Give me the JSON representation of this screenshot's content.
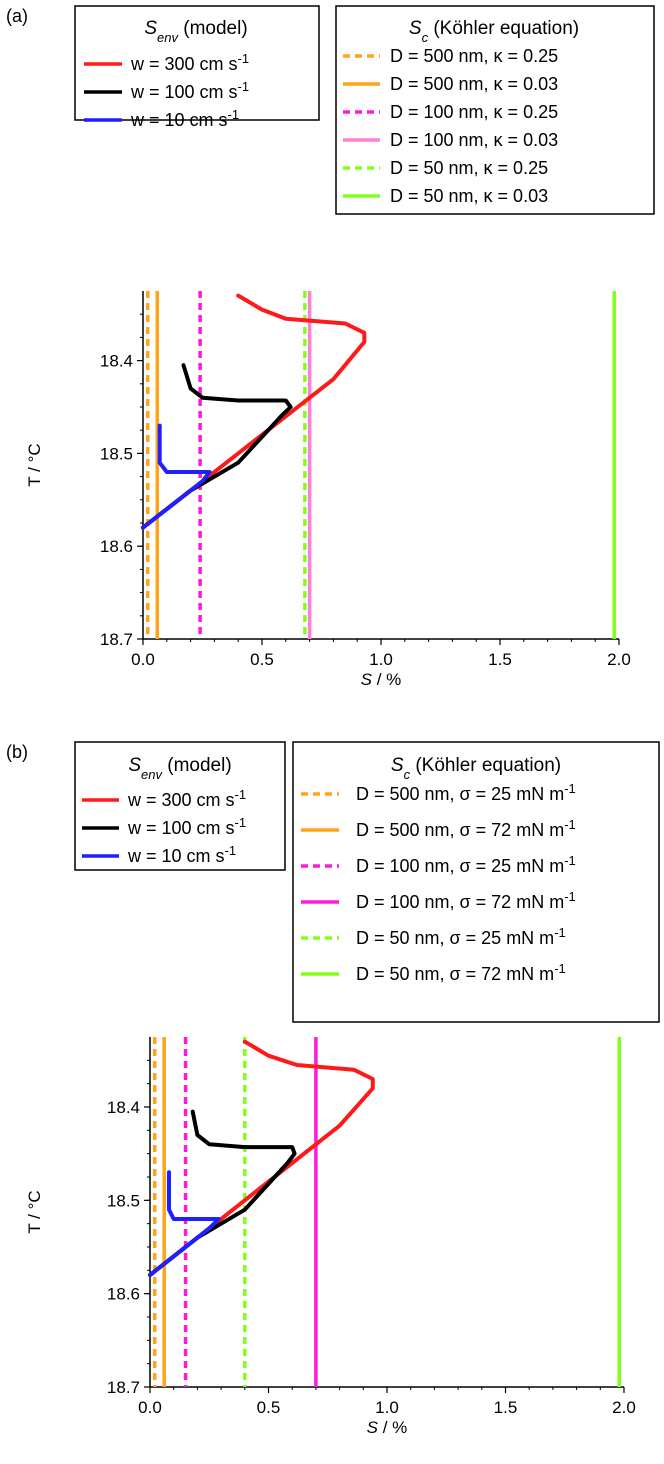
{
  "chart_data": [
    {
      "panel_label": "(a)",
      "type": "line",
      "xlabel": {
        "italic": "S",
        "text": " / %"
      },
      "ylabel": "T / °C",
      "xlim": [
        0.0,
        2.0
      ],
      "ylim": [
        18.7,
        18.325
      ],
      "y_reversed": true,
      "xticks": [
        "0.0",
        "0.5",
        "1.0",
        "1.5",
        "2.0"
      ],
      "yticks": [
        "18.4",
        "18.5",
        "18.6",
        "18.7"
      ],
      "model_legend": {
        "title": "S",
        "title_sub": "env",
        "title_rest": " (model)",
        "entries": [
          {
            "text": "w = 300 cm s",
            "sup": "-1",
            "color": "#ff1a1a"
          },
          {
            "text": "w = 100 cm s",
            "sup": "-1",
            "color": "#000000"
          },
          {
            "text": "w = 10 cm s",
            "sup": "-1",
            "color": "#1f1fff"
          }
        ]
      },
      "kohler_legend": {
        "title": "S",
        "title_sub": "c",
        "title_rest": " (Köhler equation)",
        "entries": [
          {
            "text": "D = 500 nm, κ = 0.25",
            "sup": "",
            "color": "#ffa31a",
            "dash": true,
            "x": 0.02
          },
          {
            "text": "D = 500 nm, κ = 0.03",
            "sup": "",
            "color": "#ffa31a",
            "dash": false,
            "x": 0.06
          },
          {
            "text": "D = 100 nm,  κ = 0.25",
            "sup": "",
            "color": "#ff1ad9",
            "dash": true,
            "x": 0.24
          },
          {
            "text": "D = 100 nm, κ = 0.03",
            "sup": "",
            "color": "#ff80d5",
            "dash": false,
            "x": 0.7
          },
          {
            "text": "D = 50 nm, κ = 0.25",
            "sup": "",
            "color": "#80ff1a",
            "dash": true,
            "x": 0.68
          },
          {
            "text": "D = 50 nm, κ = 0.03",
            "sup": "",
            "color": "#80ff1a",
            "dash": false,
            "x": 1.98
          }
        ]
      },
      "series": [
        {
          "name": "w = 300 cm s-1",
          "color": "#ff1a1a",
          "points": [
            [
              0.0,
              18.58
            ],
            [
              0.2,
              18.54
            ],
            [
              0.4,
              18.5
            ],
            [
              0.6,
              18.46
            ],
            [
              0.8,
              18.42
            ],
            [
              0.93,
              18.38
            ],
            [
              0.93,
              18.37
            ],
            [
              0.85,
              18.36
            ],
            [
              0.6,
              18.355
            ],
            [
              0.5,
              18.345
            ],
            [
              0.4,
              18.33
            ]
          ]
        },
        {
          "name": "w = 100 cm s-1",
          "color": "#000000",
          "points": [
            [
              0.0,
              18.58
            ],
            [
              0.2,
              18.54
            ],
            [
              0.4,
              18.51
            ],
            [
              0.58,
              18.46
            ],
            [
              0.62,
              18.45
            ],
            [
              0.6,
              18.443
            ],
            [
              0.4,
              18.443
            ],
            [
              0.25,
              18.44
            ],
            [
              0.2,
              18.43
            ],
            [
              0.17,
              18.405
            ]
          ]
        },
        {
          "name": "w = 10 cm s-1",
          "color": "#1f1fff",
          "points": [
            [
              0.0,
              18.58
            ],
            [
              0.15,
              18.55
            ],
            [
              0.25,
              18.53
            ],
            [
              0.28,
              18.52
            ],
            [
              0.1,
              18.52
            ],
            [
              0.07,
              18.51
            ],
            [
              0.07,
              18.47
            ]
          ]
        }
      ]
    },
    {
      "panel_label": "(b)",
      "type": "line",
      "xlabel": {
        "italic": "S",
        "text": " / %"
      },
      "ylabel": "T / °C",
      "xlim": [
        0.0,
        2.0
      ],
      "ylim": [
        18.7,
        18.325
      ],
      "y_reversed": true,
      "xticks": [
        "0.0",
        "0.5",
        "1.0",
        "1.5",
        "2.0"
      ],
      "yticks": [
        "18.4",
        "18.5",
        "18.6",
        "18.7"
      ],
      "model_legend": {
        "title": "S",
        "title_sub": "env",
        "title_rest": " (model)",
        "entries": [
          {
            "text": "w = 300 cm s",
            "sup": "-1",
            "color": "#ff1a1a"
          },
          {
            "text": "w = 100 cm s",
            "sup": "-1",
            "color": "#000000"
          },
          {
            "text": "w = 10 cm s",
            "sup": "-1",
            "color": "#1f1fff"
          }
        ]
      },
      "kohler_legend": {
        "title": "S",
        "title_sub": "c",
        "title_rest": " (Köhler equation)",
        "entries": [
          {
            "text": "D = 500 nm, σ = 25 mN m",
            "sup": "-1",
            "color": "#ffa31a",
            "dash": true,
            "x": 0.02
          },
          {
            "text": "D = 500 nm, σ = 72  mN m",
            "sup": "-1",
            "color": "#ffa31a",
            "dash": false,
            "x": 0.06
          },
          {
            "text": "D = 100 nm, σ = 25 mN m",
            "sup": "-1",
            "color": "#ff1ad9",
            "dash": true,
            "x": 0.15
          },
          {
            "text": "D = 100 nm, σ = 72 mN m",
            "sup": "-1",
            "color": "#ff1ad9",
            "dash": false,
            "x": 0.7
          },
          {
            "text": "D = 50 nm, σ = 25 mN m",
            "sup": "-1",
            "color": "#80ff1a",
            "dash": true,
            "x": 0.4
          },
          {
            "text": "D = 50 nm, σ = 72 mN m",
            "sup": "-1",
            "color": "#80ff1a",
            "dash": false,
            "x": 1.98
          }
        ]
      },
      "series": [
        {
          "name": "w = 300 cm s-1",
          "color": "#ff1a1a",
          "points": [
            [
              0.0,
              18.58
            ],
            [
              0.2,
              18.54
            ],
            [
              0.4,
              18.5
            ],
            [
              0.6,
              18.46
            ],
            [
              0.8,
              18.42
            ],
            [
              0.94,
              18.38
            ],
            [
              0.94,
              18.37
            ],
            [
              0.86,
              18.36
            ],
            [
              0.62,
              18.355
            ],
            [
              0.5,
              18.345
            ],
            [
              0.4,
              18.33
            ]
          ]
        },
        {
          "name": "w = 100 cm s-1",
          "color": "#000000",
          "points": [
            [
              0.0,
              18.58
            ],
            [
              0.2,
              18.54
            ],
            [
              0.4,
              18.51
            ],
            [
              0.58,
              18.46
            ],
            [
              0.61,
              18.45
            ],
            [
              0.6,
              18.443
            ],
            [
              0.4,
              18.443
            ],
            [
              0.25,
              18.44
            ],
            [
              0.2,
              18.43
            ],
            [
              0.18,
              18.405
            ]
          ]
        },
        {
          "name": "w = 10 cm s-1",
          "color": "#1f1fff",
          "points": [
            [
              0.0,
              18.58
            ],
            [
              0.15,
              18.55
            ],
            [
              0.25,
              18.53
            ],
            [
              0.29,
              18.52
            ],
            [
              0.1,
              18.52
            ],
            [
              0.08,
              18.51
            ],
            [
              0.08,
              18.47
            ]
          ]
        }
      ]
    }
  ]
}
